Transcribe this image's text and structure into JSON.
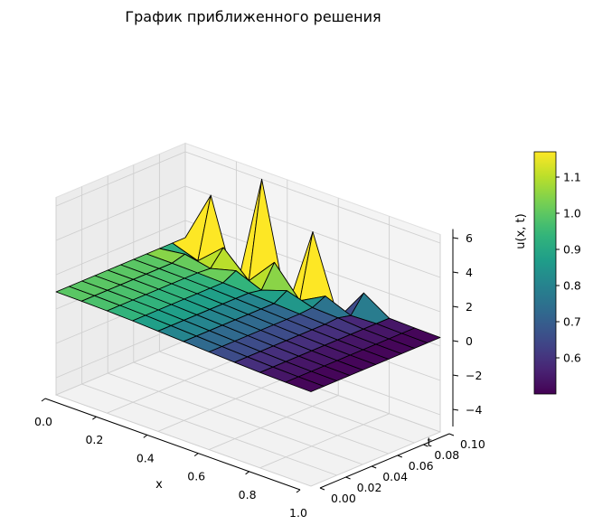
{
  "chart_data": {
    "type": "surface",
    "title": "График приближенного решения",
    "xlabel": "x",
    "ylabel": "t",
    "zlabel": "",
    "colorbar_label": "u(x, t)",
    "colormap": "viridis",
    "x": [
      0.0,
      0.1,
      0.2,
      0.3,
      0.4,
      0.5,
      0.6,
      0.7,
      0.8,
      0.9,
      1.0
    ],
    "t": [
      0.0,
      0.01,
      0.02,
      0.03,
      0.04,
      0.05,
      0.06,
      0.07,
      0.08,
      0.09,
      0.1
    ],
    "z": [
      [
        1.0,
        0.99,
        0.96,
        0.91,
        0.84,
        0.77,
        0.69,
        0.62,
        0.56,
        0.52,
        0.5
      ],
      [
        1.0,
        0.99,
        0.96,
        0.91,
        0.84,
        0.77,
        0.69,
        0.62,
        0.56,
        0.52,
        0.5
      ],
      [
        1.0,
        0.99,
        0.96,
        0.91,
        0.84,
        0.77,
        0.69,
        0.62,
        0.56,
        0.52,
        0.5
      ],
      [
        1.0,
        0.99,
        0.96,
        0.91,
        0.84,
        0.77,
        0.69,
        0.62,
        0.56,
        0.52,
        0.5
      ],
      [
        1.0,
        0.99,
        0.96,
        0.91,
        0.84,
        0.77,
        0.69,
        0.62,
        0.56,
        0.52,
        0.5
      ],
      [
        1.0,
        0.99,
        0.96,
        0.91,
        0.84,
        0.77,
        0.69,
        0.62,
        0.56,
        0.52,
        0.5
      ],
      [
        1.0,
        0.99,
        0.96,
        0.91,
        0.84,
        0.77,
        0.69,
        0.62,
        0.56,
        0.52,
        0.5
      ],
      [
        1.0,
        0.99,
        0.96,
        0.91,
        0.84,
        0.77,
        0.69,
        0.62,
        0.56,
        0.52,
        0.5
      ],
      [
        1.0,
        1.2,
        0.9,
        1.3,
        0.7,
        1.2,
        0.75,
        0.68,
        0.56,
        0.52,
        0.5
      ],
      [
        1.0,
        0.5,
        1.8,
        0.4,
        2.0,
        0.3,
        1.1,
        0.5,
        0.56,
        0.52,
        0.5
      ],
      [
        1.0,
        4.0,
        -1.0,
        6.0,
        -1.0,
        4.0,
        -0.5,
        1.5,
        0.56,
        0.52,
        0.5
      ]
    ],
    "xticks": [
      "0.0",
      "0.2",
      "0.4",
      "0.6",
      "0.8",
      "1.0"
    ],
    "tticks": [
      "0.00",
      "0.02",
      "0.04",
      "0.06",
      "0.08",
      "0.10"
    ],
    "zticks": [
      "−4",
      "−2",
      "0",
      "2",
      "4",
      "6"
    ],
    "xlim": [
      0,
      1
    ],
    "tlim": [
      0,
      0.1
    ],
    "zlim": [
      -5,
      6.5
    ],
    "colorbar_ticks": [
      "0.6",
      "0.7",
      "0.8",
      "0.9",
      "1.0",
      "1.1"
    ],
    "colorbar_range": [
      0.5,
      1.17
    ],
    "grid": true
  }
}
